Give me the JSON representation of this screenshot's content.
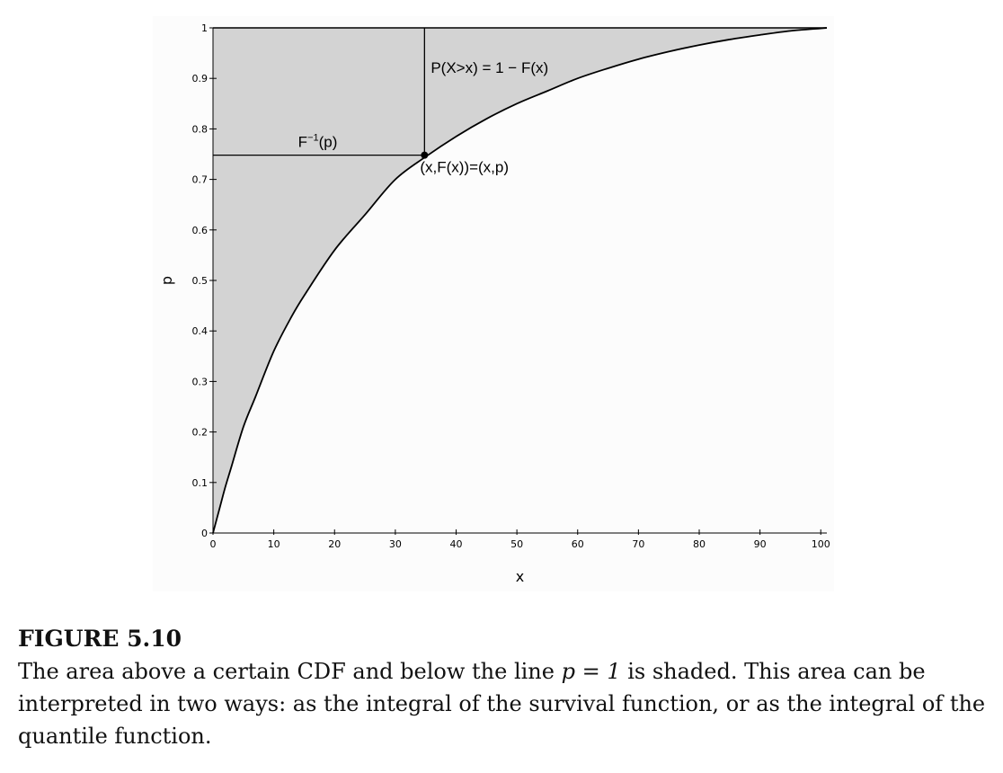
{
  "figure": {
    "label": "FIGURE 5.10",
    "caption_before_math": "The area above a certain CDF and below the line ",
    "caption_math": "p = 1",
    "caption_after_math": " is shaded. This area can be interpreted in two ways: as the integral of the survival function, or as the integral of the quantile function."
  },
  "chart_data": {
    "type": "area",
    "xlabel": "x",
    "ylabel": "p",
    "xlim": [
      0,
      101
    ],
    "ylim": [
      0,
      1
    ],
    "x_ticks": [
      0,
      10,
      20,
      30,
      40,
      50,
      60,
      70,
      80,
      90,
      100
    ],
    "y_ticks": [
      0,
      0.1,
      0.2,
      0.3,
      0.4,
      0.5,
      0.6,
      0.7,
      0.8,
      0.9,
      1
    ],
    "y_tick_labels": [
      "0",
      "0.1",
      "0.2",
      "0.3",
      "0.4",
      "0.5",
      "0.6",
      "0.7",
      "0.8",
      "0.9",
      "1"
    ],
    "curve": {
      "x": [
        0,
        1,
        2,
        3,
        5,
        7,
        10,
        13,
        15,
        20,
        25,
        30,
        35,
        40,
        45,
        50,
        55,
        60,
        65,
        70,
        75,
        80,
        85,
        90,
        95,
        100,
        101
      ],
      "y": [
        0,
        0.045,
        0.09,
        0.13,
        0.21,
        0.27,
        0.36,
        0.43,
        0.47,
        0.56,
        0.63,
        0.7,
        0.745,
        0.785,
        0.82,
        0.85,
        0.875,
        0.9,
        0.92,
        0.938,
        0.953,
        0.966,
        0.977,
        0.986,
        0.994,
        0.999,
        1.0
      ]
    },
    "shaded_region": "between curve and p = 1",
    "marked_point": {
      "x": 34.8,
      "y": 0.748
    },
    "annotations": {
      "survival": "P(X>x) = 1 − F(x)",
      "quantile_base": "F",
      "quantile_sup": "−1",
      "quantile_arg": "(p)",
      "point": "(x,F(x))=(x,p)"
    },
    "colors": {
      "shade": "#d3d3d3",
      "line": "#000000",
      "background": "#fcfcfc"
    },
    "grid": false
  }
}
